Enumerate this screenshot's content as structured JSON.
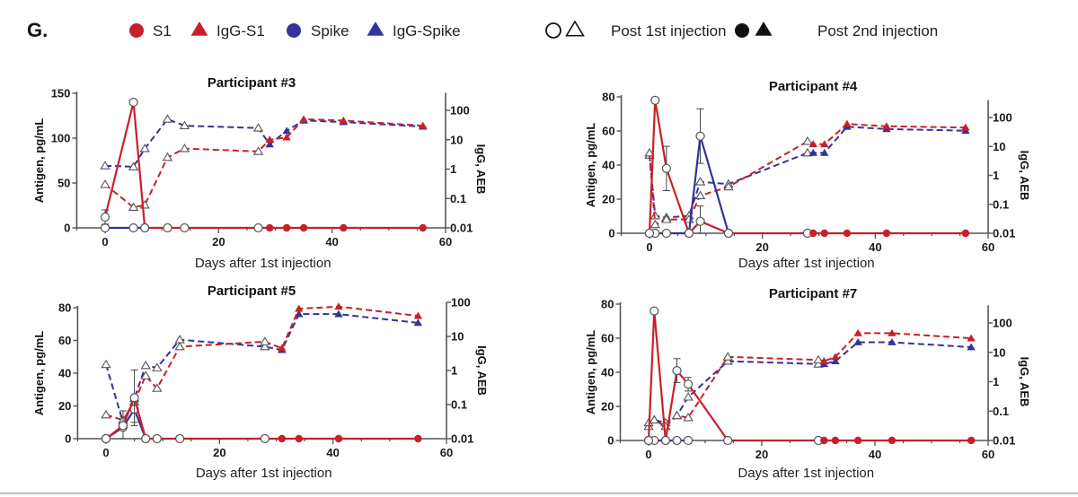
{
  "figure": {
    "panel_letter": "G.",
    "legend": [
      {
        "label": "S1",
        "marker": "circle",
        "color": "#c8202a",
        "filled": true
      },
      {
        "label": "IgG-S1",
        "marker": "triangle",
        "color": "#c8202a",
        "filled": true
      },
      {
        "label": "Spike",
        "marker": "circle",
        "color": "#33339a",
        "filled": true
      },
      {
        "label": "IgG-Spike",
        "marker": "triangle",
        "color": "#33339a",
        "filled": true
      },
      {
        "label": "Post 1st injection",
        "marker": "circle+triangle",
        "color": "#111111",
        "filled": false
      },
      {
        "label": "Post 2nd injection",
        "marker": "circle+triangle",
        "color": "#111111",
        "filled": true
      }
    ],
    "colors": {
      "s1": "#c8202a",
      "spike": "#33339a",
      "axis": "#555555"
    }
  },
  "chart_data": [
    {
      "type": "line",
      "title": "Participant #3",
      "xlabel": "Days after 1st injection",
      "ylabel": "Antigen, pg/mL",
      "y2label": "IgG, AEB",
      "xlim": [
        -5,
        60
      ],
      "xticks": [
        0,
        20,
        40,
        60
      ],
      "ylim": [
        0,
        150
      ],
      "yticks": [
        0,
        50,
        100,
        150
      ],
      "y2scale": "log",
      "y2lim": [
        0.01,
        400
      ],
      "y2ticks": [
        "0.01",
        "0.1",
        "1",
        "10",
        "100"
      ],
      "second_injection_day": 28,
      "series": [
        {
          "name": "S1",
          "axis": "left",
          "style": "solid",
          "marker": "circle",
          "x": [
            0,
            5,
            7,
            11,
            14,
            27,
            29,
            32,
            35,
            42,
            56
          ],
          "y": [
            12,
            140,
            0,
            0,
            0,
            0,
            0,
            0,
            0,
            0,
            0
          ],
          "err": [
            8,
            0,
            0,
            0,
            0,
            0,
            0,
            0,
            0,
            0,
            0
          ]
        },
        {
          "name": "Spike",
          "axis": "left",
          "style": "solid",
          "marker": "circle",
          "x": [
            0,
            5,
            7
          ],
          "y": [
            0,
            0,
            0
          ],
          "err": [
            3,
            0,
            0
          ]
        },
        {
          "name": "IgG-S1",
          "axis": "right",
          "style": "dashed",
          "marker": "triangle",
          "x": [
            0,
            5,
            7,
            11,
            14,
            27,
            29,
            32,
            35,
            42,
            56
          ],
          "y": [
            0.3,
            0.05,
            0.06,
            2.5,
            5,
            4,
            10,
            12,
            50,
            45,
            30
          ]
        },
        {
          "name": "IgG-Spike",
          "axis": "right",
          "style": "dashed",
          "marker": "triangle",
          "x": [
            0,
            5,
            7,
            11,
            14,
            27,
            29,
            32,
            35,
            42,
            56
          ],
          "y": [
            1.3,
            1.2,
            5,
            50,
            30,
            25,
            7,
            20,
            45,
            40,
            28
          ]
        }
      ]
    },
    {
      "type": "line",
      "title": "Participant #4",
      "xlabel": "Days after 1st injection",
      "ylabel": "Antigen, pg/mL",
      "y2label": "IgG, AEB",
      "xlim": [
        -5,
        60
      ],
      "xticks": [
        0,
        20,
        40,
        60
      ],
      "ylim": [
        0,
        80
      ],
      "yticks": [
        0,
        20,
        40,
        60,
        80
      ],
      "y2scale": "log",
      "y2lim": [
        0.01,
        400
      ],
      "y2ticks": [
        "0.01",
        "0.1",
        "1",
        "10",
        "100"
      ],
      "second_injection_day": 28,
      "series": [
        {
          "name": "S1",
          "axis": "left",
          "style": "solid",
          "marker": "circle",
          "x": [
            0,
            1,
            3,
            7,
            9,
            14,
            28,
            29,
            31,
            35,
            42,
            56
          ],
          "y": [
            0,
            78,
            38,
            0,
            7,
            0,
            0,
            0,
            0,
            0,
            0,
            0
          ],
          "err": [
            0,
            0,
            13,
            0,
            9,
            0,
            0,
            0,
            0,
            0,
            0,
            0
          ]
        },
        {
          "name": "Spike",
          "axis": "left",
          "style": "solid",
          "marker": "circle",
          "x": [
            0,
            1,
            3,
            7,
            9,
            14
          ],
          "y": [
            0,
            0,
            0,
            0,
            57,
            0
          ],
          "err": [
            0,
            0,
            0,
            0,
            16,
            0
          ]
        },
        {
          "name": "IgG-S1",
          "axis": "right",
          "style": "dashed",
          "marker": "triangle",
          "x": [
            0,
            1,
            3,
            7,
            9,
            14,
            28,
            29,
            31,
            35,
            42,
            56
          ],
          "y": [
            6,
            0.02,
            0.03,
            0.03,
            0.2,
            0.4,
            15,
            12,
            12,
            60,
            50,
            45
          ]
        },
        {
          "name": "IgG-Spike",
          "axis": "right",
          "style": "dashed",
          "marker": "triangle",
          "x": [
            0,
            1,
            3,
            7,
            9,
            14,
            28,
            29,
            31,
            35,
            42,
            56
          ],
          "y": [
            5,
            0.04,
            0.035,
            0.04,
            0.6,
            0.5,
            6,
            6,
            6,
            48,
            40,
            35
          ]
        }
      ]
    },
    {
      "type": "line",
      "title": "Participant #5",
      "xlabel": "Days after 1st injection",
      "ylabel": "Antigen, pg/mL",
      "y2label": "IgG, AEB",
      "xlim": [
        -5,
        60
      ],
      "xticks": [
        0,
        20,
        40,
        60
      ],
      "ylim": [
        0,
        80
      ],
      "yticks": [
        0,
        20,
        40,
        60,
        80
      ],
      "y2scale": "log",
      "y2lim": [
        0.01,
        100
      ],
      "y2ticks": [
        "0.01",
        "0.1",
        "1",
        "10",
        "100"
      ],
      "second_injection_day": 28,
      "series": [
        {
          "name": "S1",
          "axis": "left",
          "style": "solid",
          "marker": "circle",
          "x": [
            0,
            3,
            5,
            7,
            9,
            13,
            28,
            31,
            34,
            41,
            55
          ],
          "y": [
            0,
            8,
            25,
            0,
            0,
            0,
            0,
            0,
            0,
            0,
            0
          ],
          "err": [
            0,
            0,
            17,
            0,
            0,
            0,
            0,
            0,
            0,
            0,
            0
          ]
        },
        {
          "name": "Spike",
          "axis": "left",
          "style": "solid",
          "marker": "circle",
          "x": [
            0,
            3,
            5,
            7
          ],
          "y": [
            0,
            7,
            18,
            0
          ],
          "err": [
            0,
            10,
            8,
            0
          ]
        },
        {
          "name": "IgG-S1",
          "axis": "right",
          "style": "dashed",
          "marker": "triangle",
          "x": [
            0,
            3,
            5,
            7,
            9,
            13,
            28,
            31,
            34,
            41,
            55
          ],
          "y": [
            0.05,
            0.035,
            0.12,
            0.7,
            0.3,
            5,
            7,
            4.5,
            65,
            75,
            40
          ]
        },
        {
          "name": "IgG-Spike",
          "axis": "right",
          "style": "dashed",
          "marker": "triangle",
          "x": [
            0,
            3,
            5,
            7,
            9,
            13,
            28,
            31,
            34,
            41,
            55
          ],
          "y": [
            1.5,
            0.03,
            0.15,
            1.4,
            1.2,
            8,
            5,
            4,
            45,
            45,
            25
          ]
        }
      ]
    },
    {
      "type": "line",
      "title": "Participant #7",
      "xlabel": "Days after 1st injection",
      "ylabel": "Antigen, pg/mL",
      "y2label": "IgG, AEB",
      "xlim": [
        -5,
        60
      ],
      "xticks": [
        0,
        20,
        40,
        60
      ],
      "ylim": [
        0,
        80
      ],
      "yticks": [
        0,
        20,
        40,
        60,
        80
      ],
      "y2scale": "log",
      "y2lim": [
        0.01,
        400
      ],
      "y2ticks": [
        "0.01",
        "0.1",
        "1",
        "10",
        "100"
      ],
      "second_injection_day": 30,
      "series": [
        {
          "name": "S1",
          "axis": "left",
          "style": "solid",
          "marker": "circle",
          "x": [
            0,
            1,
            3,
            5,
            7,
            14,
            30,
            31,
            33,
            37,
            43,
            57
          ],
          "y": [
            0,
            76,
            0,
            41,
            33,
            0,
            0,
            0,
            0,
            0,
            0,
            0
          ],
          "err": [
            0,
            0,
            0,
            7,
            4,
            0,
            0,
            0,
            0,
            0,
            0,
            0
          ]
        },
        {
          "name": "Spike",
          "axis": "left",
          "style": "solid",
          "marker": "circle",
          "x": [
            0,
            1,
            3,
            5,
            7
          ],
          "y": [
            0,
            0,
            0,
            0,
            0
          ],
          "err": [
            0,
            0,
            0,
            0,
            0
          ]
        },
        {
          "name": "IgG-S1",
          "axis": "right",
          "style": "dashed",
          "marker": "triangle",
          "x": [
            0,
            1,
            3,
            5,
            7,
            14,
            30,
            31,
            33,
            37,
            43,
            57
          ],
          "y": [
            0.04,
            0.05,
            0.03,
            0.07,
            0.06,
            7,
            5.5,
            5,
            7,
            45,
            45,
            30
          ]
        },
        {
          "name": "IgG-Spike",
          "axis": "right",
          "style": "dashed",
          "marker": "triangle",
          "x": [
            0,
            1,
            3,
            5,
            7,
            14,
            30,
            31,
            33,
            37,
            43,
            57
          ],
          "y": [
            0.03,
            0.05,
            0.04,
            0.07,
            0.3,
            5,
            4,
            4,
            5,
            22,
            22,
            15
          ]
        }
      ]
    }
  ]
}
